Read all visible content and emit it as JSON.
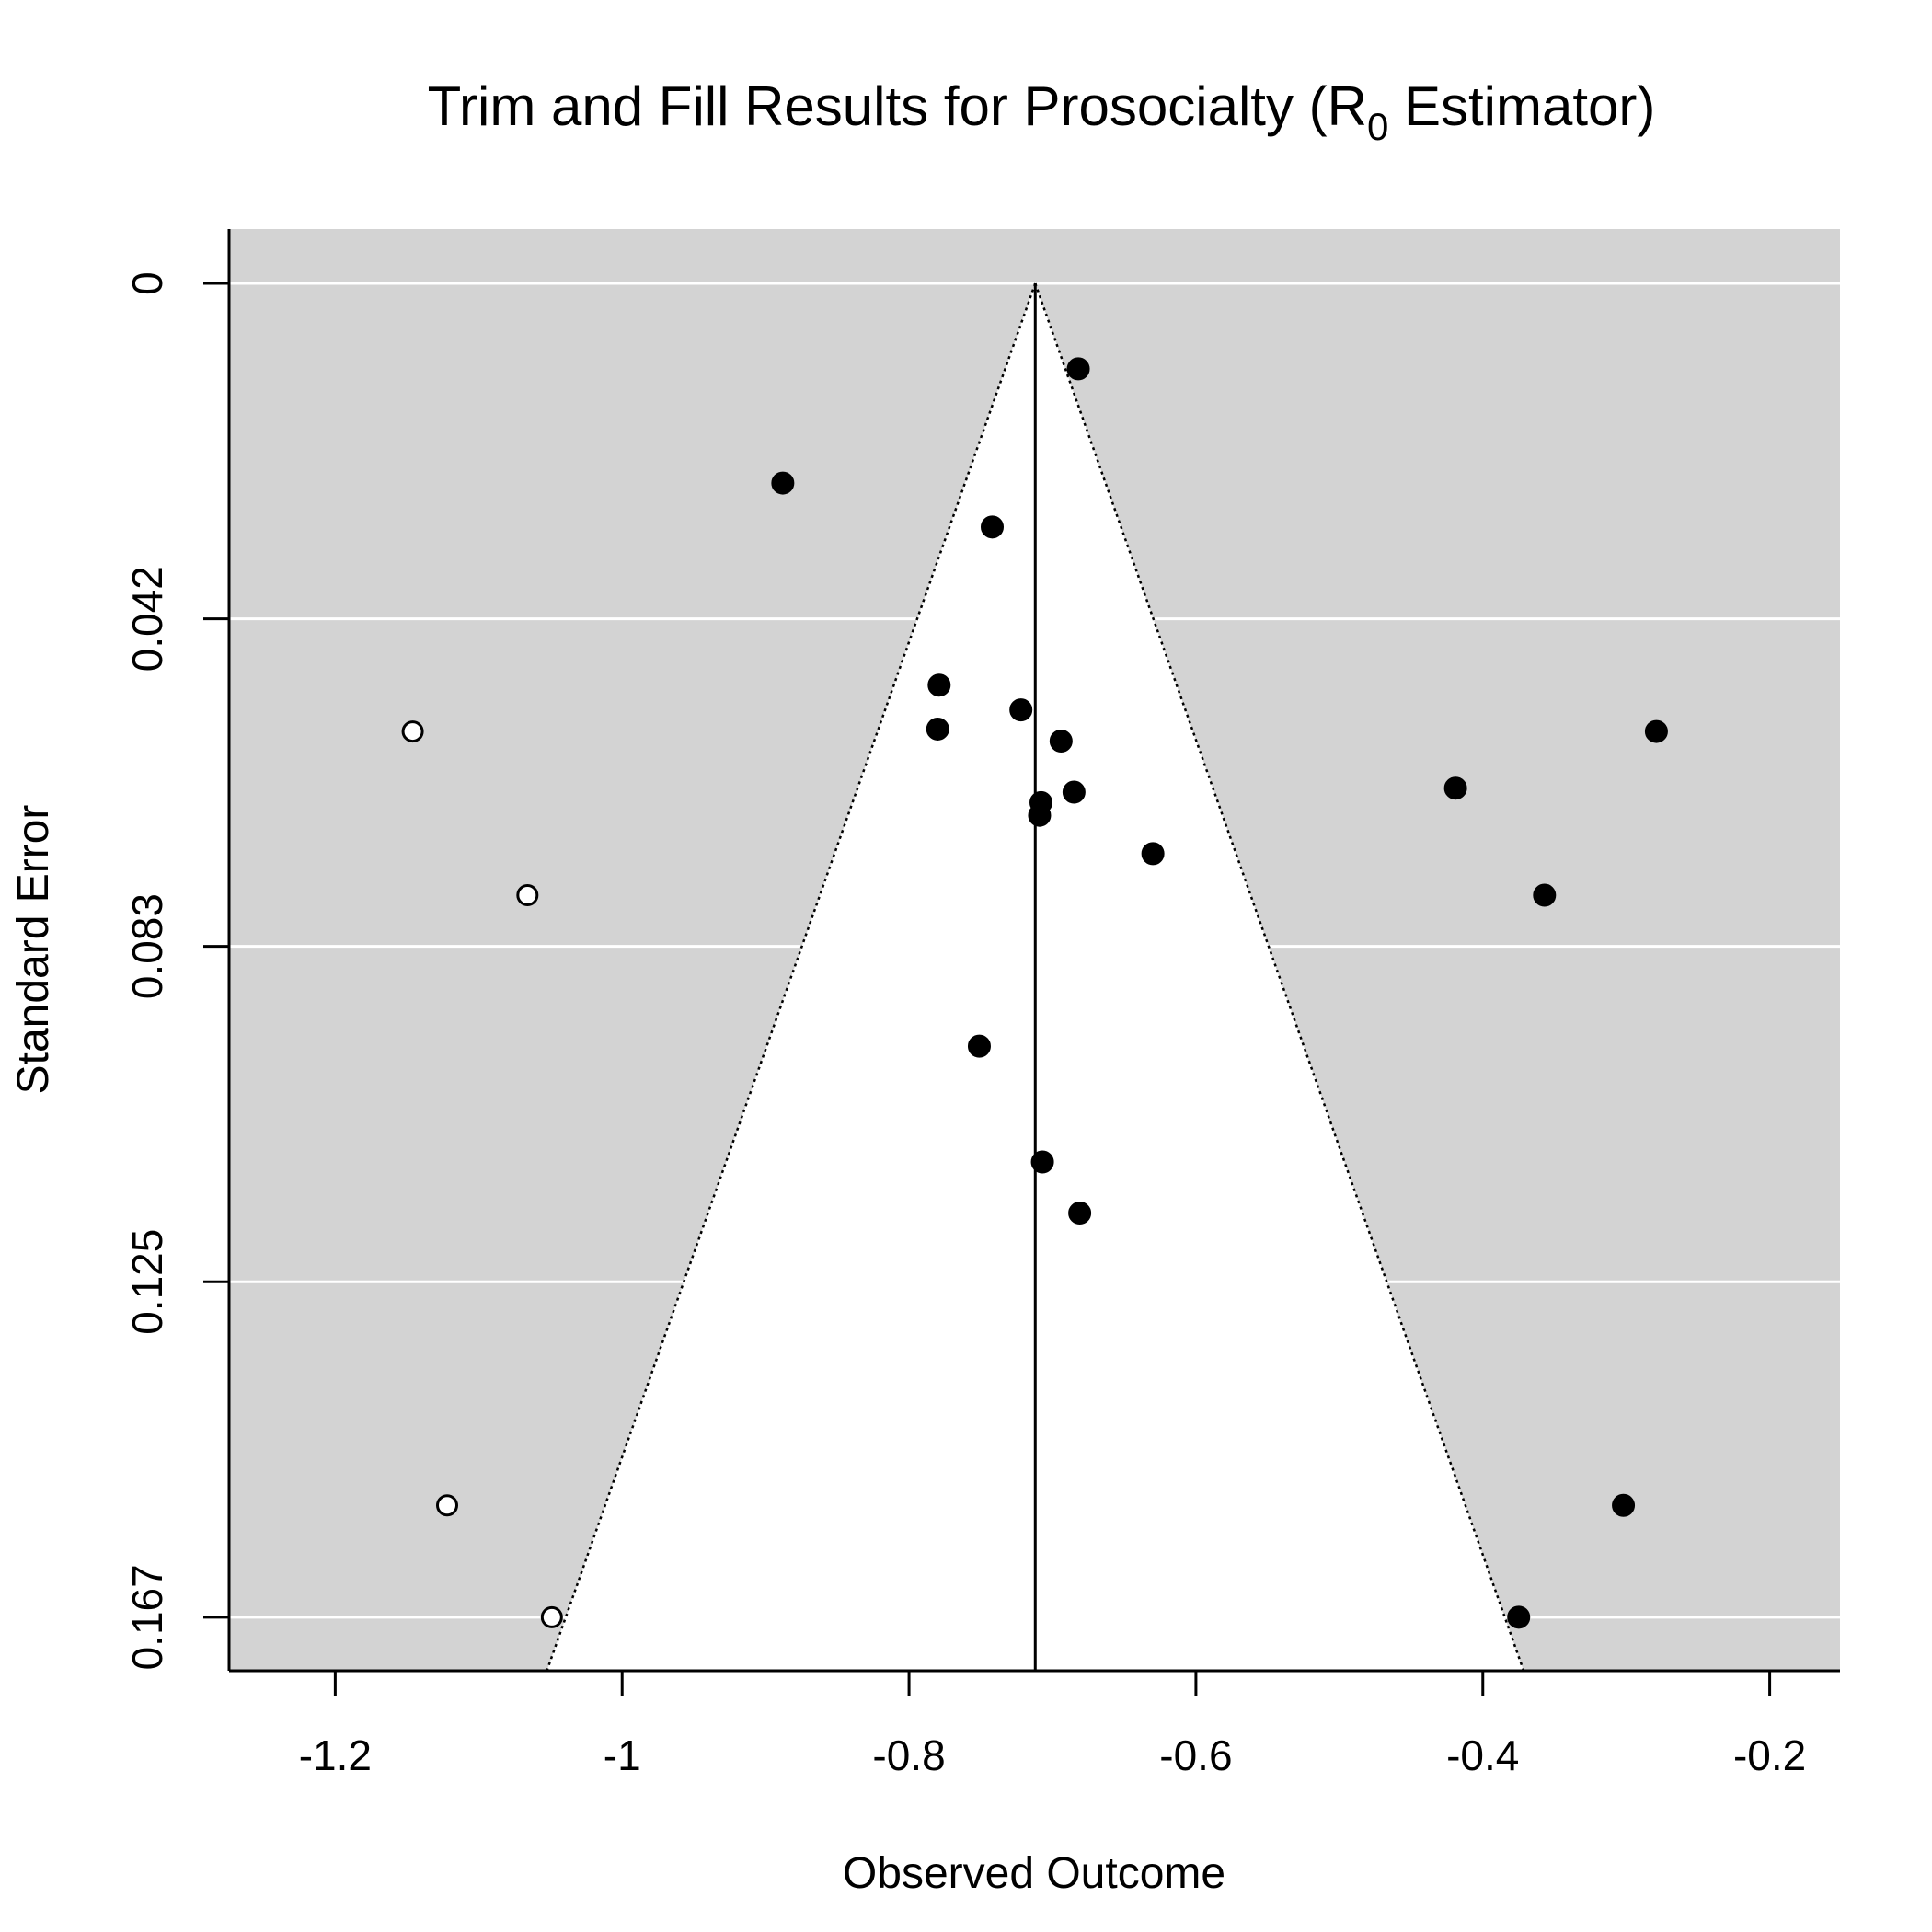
{
  "chart_data": {
    "type": "scatter",
    "title": "Trim and Fill Results for Prosocialty (R",
    "title_subscript": "0",
    "title_suffix": " Estimator)",
    "xlabel": "Observed Outcome",
    "ylabel": "Standard Error",
    "xlim": [
      -1.274,
      -0.151
    ],
    "ylim": [
      0.1737,
      -0.0068
    ],
    "x_ticks": [
      -1.2,
      -1.0,
      -0.8,
      -0.6,
      -0.4,
      -0.2
    ],
    "x_tick_labels": [
      "-1.2",
      "-1",
      "-0.8",
      "-0.6",
      "-0.4",
      "-0.2"
    ],
    "y_ticks": [
      0,
      0.042,
      0.083,
      0.125,
      0.167
    ],
    "y_tick_labels": [
      "0",
      "0.042",
      "0.083",
      "0.125",
      "0.167"
    ],
    "y_reversed": true,
    "grid": true,
    "pooled_estimate": -0.712,
    "funnel_z": 1.96,
    "funnel_se_max": 0.1737,
    "colors": {
      "panel_background": "#d3d3d3",
      "funnel_region": "#ffffff",
      "grid_line": "#ffffff",
      "observed_point": "#000000",
      "imputed_point_fill": "#ffffff",
      "imputed_point_stroke": "#000000",
      "reference_line": "#000000"
    },
    "series": [
      {
        "style": "filled",
        "points": [
          {
            "x": -0.682,
            "y": 0.0107
          },
          {
            "x": -0.888,
            "y": 0.025
          },
          {
            "x": -0.742,
            "y": 0.0305
          },
          {
            "x": -0.779,
            "y": 0.0503
          },
          {
            "x": -0.722,
            "y": 0.0534
          },
          {
            "x": -0.78,
            "y": 0.0558
          },
          {
            "x": -0.694,
            "y": 0.0573
          },
          {
            "x": -0.685,
            "y": 0.0637
          },
          {
            "x": -0.708,
            "y": 0.065
          },
          {
            "x": -0.709,
            "y": 0.0666
          },
          {
            "x": -0.63,
            "y": 0.0714
          },
          {
            "x": -0.419,
            "y": 0.0632
          },
          {
            "x": -0.279,
            "y": 0.0561
          },
          {
            "x": -0.357,
            "y": 0.0766
          },
          {
            "x": -0.751,
            "y": 0.0955
          },
          {
            "x": -0.707,
            "y": 0.11
          },
          {
            "x": -0.681,
            "y": 0.1164
          },
          {
            "x": -0.302,
            "y": 0.153
          },
          {
            "x": -0.375,
            "y": 0.167
          }
        ]
      },
      {
        "style": "open",
        "points": [
          {
            "x": -1.146,
            "y": 0.0561
          },
          {
            "x": -1.066,
            "y": 0.0766
          },
          {
            "x": -1.122,
            "y": 0.153
          },
          {
            "x": -1.049,
            "y": 0.167
          }
        ]
      }
    ]
  }
}
